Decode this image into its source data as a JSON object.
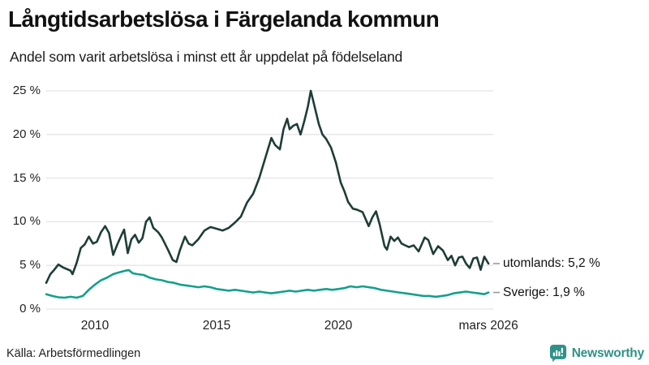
{
  "header": {
    "title": "Långtidsarbetslösa i Färgelanda kommun",
    "subtitle": "Andel som varit arbetslösa i minst ett år uppdelat på födelseland"
  },
  "footer": {
    "source": "Källa: Arbetsförmedlingen",
    "brand": "Newsworthy"
  },
  "colors": {
    "utomlands_line": "#1e3d36",
    "sverige_line": "#14a08c",
    "gridline": "#e4e4ea",
    "legend_dash": "#9a9a9a",
    "brand_teal": "#2f9187"
  },
  "chart_data": {
    "type": "line",
    "title": "Långtidsarbetslösa i Färgelanda kommun",
    "subtitle": "Andel som varit arbetslösa i minst ett år uppdelat på födelseland",
    "xlabel": "",
    "ylabel": "",
    "ylim": [
      0,
      25
    ],
    "xlim": [
      2008,
      2026.17
    ],
    "grid": "horizontal",
    "legend_position": "right-end-labels",
    "y_axis": {
      "ticks": [
        {
          "label": "0 %",
          "value": 0
        },
        {
          "label": "5 %",
          "value": 5
        },
        {
          "label": "10 %",
          "value": 10
        },
        {
          "label": "15 %",
          "value": 15
        },
        {
          "label": "20 %",
          "value": 20
        },
        {
          "label": "25 %",
          "value": 25
        }
      ]
    },
    "x_axis": {
      "ticks": [
        {
          "label": "2010",
          "year": 2010
        },
        {
          "label": "2015",
          "year": 2015
        },
        {
          "label": "2020",
          "year": 2020
        },
        {
          "label": "mars 2026",
          "year": 2026.17
        }
      ]
    },
    "series": [
      {
        "name": "utomlands",
        "end_label": "utomlands: 5,2 %",
        "end_value_text": "5,2 %",
        "color": "#1e3d36",
        "points": [
          [
            2008.0,
            3.0
          ],
          [
            2008.17,
            4.0
          ],
          [
            2008.33,
            4.5
          ],
          [
            2008.5,
            5.1
          ],
          [
            2008.67,
            4.8
          ],
          [
            2008.83,
            4.6
          ],
          [
            2009.0,
            4.4
          ],
          [
            2009.08,
            4.0
          ],
          [
            2009.25,
            5.3
          ],
          [
            2009.42,
            7.0
          ],
          [
            2009.58,
            7.4
          ],
          [
            2009.75,
            8.3
          ],
          [
            2009.92,
            7.5
          ],
          [
            2010.08,
            7.7
          ],
          [
            2010.25,
            8.8
          ],
          [
            2010.42,
            9.5
          ],
          [
            2010.58,
            8.7
          ],
          [
            2010.75,
            6.2
          ],
          [
            2010.92,
            7.4
          ],
          [
            2011.08,
            8.4
          ],
          [
            2011.2,
            9.1
          ],
          [
            2011.35,
            6.4
          ],
          [
            2011.5,
            8.0
          ],
          [
            2011.65,
            8.5
          ],
          [
            2011.8,
            7.6
          ],
          [
            2011.95,
            8.1
          ],
          [
            2012.1,
            10.0
          ],
          [
            2012.25,
            10.5
          ],
          [
            2012.4,
            9.3
          ],
          [
            2012.6,
            8.8
          ],
          [
            2012.75,
            8.2
          ],
          [
            2013.0,
            6.8
          ],
          [
            2013.2,
            5.6
          ],
          [
            2013.35,
            5.4
          ],
          [
            2013.5,
            6.8
          ],
          [
            2013.7,
            8.3
          ],
          [
            2013.85,
            7.5
          ],
          [
            2014.0,
            7.3
          ],
          [
            2014.25,
            8.0
          ],
          [
            2014.5,
            9.0
          ],
          [
            2014.75,
            9.4
          ],
          [
            2015.0,
            9.2
          ],
          [
            2015.25,
            9.0
          ],
          [
            2015.5,
            9.3
          ],
          [
            2015.75,
            9.9
          ],
          [
            2016.0,
            10.6
          ],
          [
            2016.25,
            12.2
          ],
          [
            2016.5,
            13.2
          ],
          [
            2016.75,
            15.0
          ],
          [
            2017.0,
            17.3
          ],
          [
            2017.25,
            19.6
          ],
          [
            2017.4,
            18.8
          ],
          [
            2017.6,
            18.3
          ],
          [
            2017.75,
            20.6
          ],
          [
            2017.9,
            21.8
          ],
          [
            2018.0,
            20.6
          ],
          [
            2018.15,
            21.0
          ],
          [
            2018.3,
            21.2
          ],
          [
            2018.45,
            20.0
          ],
          [
            2018.6,
            21.5
          ],
          [
            2018.75,
            23.2
          ],
          [
            2018.87,
            25.0
          ],
          [
            2019.0,
            23.5
          ],
          [
            2019.2,
            21.2
          ],
          [
            2019.35,
            20.0
          ],
          [
            2019.5,
            19.5
          ],
          [
            2019.7,
            18.5
          ],
          [
            2019.9,
            16.8
          ],
          [
            2020.1,
            14.5
          ],
          [
            2020.25,
            13.5
          ],
          [
            2020.4,
            12.3
          ],
          [
            2020.6,
            11.5
          ],
          [
            2020.75,
            11.4
          ],
          [
            2021.0,
            11.1
          ],
          [
            2021.25,
            9.5
          ],
          [
            2021.4,
            10.5
          ],
          [
            2021.55,
            11.2
          ],
          [
            2021.7,
            9.7
          ],
          [
            2021.9,
            7.2
          ],
          [
            2022.0,
            6.8
          ],
          [
            2022.15,
            8.3
          ],
          [
            2022.3,
            7.8
          ],
          [
            2022.45,
            8.2
          ],
          [
            2022.6,
            7.5
          ],
          [
            2022.75,
            7.3
          ],
          [
            2022.9,
            7.1
          ],
          [
            2023.1,
            7.3
          ],
          [
            2023.3,
            6.6
          ],
          [
            2023.55,
            8.2
          ],
          [
            2023.7,
            7.9
          ],
          [
            2023.9,
            6.3
          ],
          [
            2024.1,
            7.2
          ],
          [
            2024.3,
            6.7
          ],
          [
            2024.5,
            5.6
          ],
          [
            2024.65,
            6.1
          ],
          [
            2024.8,
            5.0
          ],
          [
            2024.95,
            5.9
          ],
          [
            2025.1,
            6.0
          ],
          [
            2025.25,
            5.2
          ],
          [
            2025.4,
            4.7
          ],
          [
            2025.55,
            5.8
          ],
          [
            2025.7,
            5.9
          ],
          [
            2025.85,
            4.5
          ],
          [
            2026.0,
            6.0
          ],
          [
            2026.17,
            5.2
          ]
        ]
      },
      {
        "name": "sverige",
        "end_label": "Sverige: 1,9 %",
        "end_value_text": "1,9 %",
        "color": "#14a08c",
        "points": [
          [
            2008.0,
            1.7
          ],
          [
            2008.25,
            1.5
          ],
          [
            2008.5,
            1.35
          ],
          [
            2008.75,
            1.3
          ],
          [
            2009.0,
            1.4
          ],
          [
            2009.25,
            1.3
          ],
          [
            2009.5,
            1.5
          ],
          [
            2009.75,
            2.2
          ],
          [
            2010.0,
            2.8
          ],
          [
            2010.25,
            3.3
          ],
          [
            2010.5,
            3.6
          ],
          [
            2010.75,
            4.0
          ],
          [
            2011.0,
            4.2
          ],
          [
            2011.25,
            4.4
          ],
          [
            2011.4,
            4.45
          ],
          [
            2011.55,
            4.1
          ],
          [
            2011.75,
            4.0
          ],
          [
            2012.0,
            3.9
          ],
          [
            2012.25,
            3.6
          ],
          [
            2012.5,
            3.4
          ],
          [
            2012.75,
            3.3
          ],
          [
            2013.0,
            3.1
          ],
          [
            2013.25,
            3.0
          ],
          [
            2013.5,
            2.8
          ],
          [
            2013.75,
            2.7
          ],
          [
            2014.0,
            2.6
          ],
          [
            2014.25,
            2.5
          ],
          [
            2014.5,
            2.6
          ],
          [
            2014.75,
            2.5
          ],
          [
            2015.0,
            2.3
          ],
          [
            2015.25,
            2.2
          ],
          [
            2015.5,
            2.1
          ],
          [
            2015.75,
            2.2
          ],
          [
            2016.0,
            2.1
          ],
          [
            2016.25,
            2.0
          ],
          [
            2016.5,
            1.9
          ],
          [
            2016.75,
            2.0
          ],
          [
            2017.0,
            1.9
          ],
          [
            2017.25,
            1.8
          ],
          [
            2017.5,
            1.9
          ],
          [
            2017.75,
            2.0
          ],
          [
            2018.0,
            2.1
          ],
          [
            2018.25,
            2.0
          ],
          [
            2018.5,
            2.1
          ],
          [
            2018.75,
            2.2
          ],
          [
            2019.0,
            2.1
          ],
          [
            2019.25,
            2.2
          ],
          [
            2019.5,
            2.3
          ],
          [
            2019.75,
            2.2
          ],
          [
            2020.0,
            2.3
          ],
          [
            2020.25,
            2.4
          ],
          [
            2020.5,
            2.6
          ],
          [
            2020.75,
            2.5
          ],
          [
            2021.0,
            2.6
          ],
          [
            2021.25,
            2.5
          ],
          [
            2021.5,
            2.4
          ],
          [
            2021.75,
            2.2
          ],
          [
            2022.0,
            2.1
          ],
          [
            2022.25,
            2.0
          ],
          [
            2022.5,
            1.9
          ],
          [
            2022.75,
            1.8
          ],
          [
            2023.0,
            1.7
          ],
          [
            2023.25,
            1.6
          ],
          [
            2023.5,
            1.5
          ],
          [
            2023.75,
            1.5
          ],
          [
            2024.0,
            1.4
          ],
          [
            2024.25,
            1.5
          ],
          [
            2024.5,
            1.6
          ],
          [
            2024.75,
            1.8
          ],
          [
            2025.0,
            1.9
          ],
          [
            2025.25,
            2.0
          ],
          [
            2025.5,
            1.9
          ],
          [
            2025.75,
            1.8
          ],
          [
            2026.0,
            1.7
          ],
          [
            2026.17,
            1.9
          ]
        ]
      }
    ]
  }
}
